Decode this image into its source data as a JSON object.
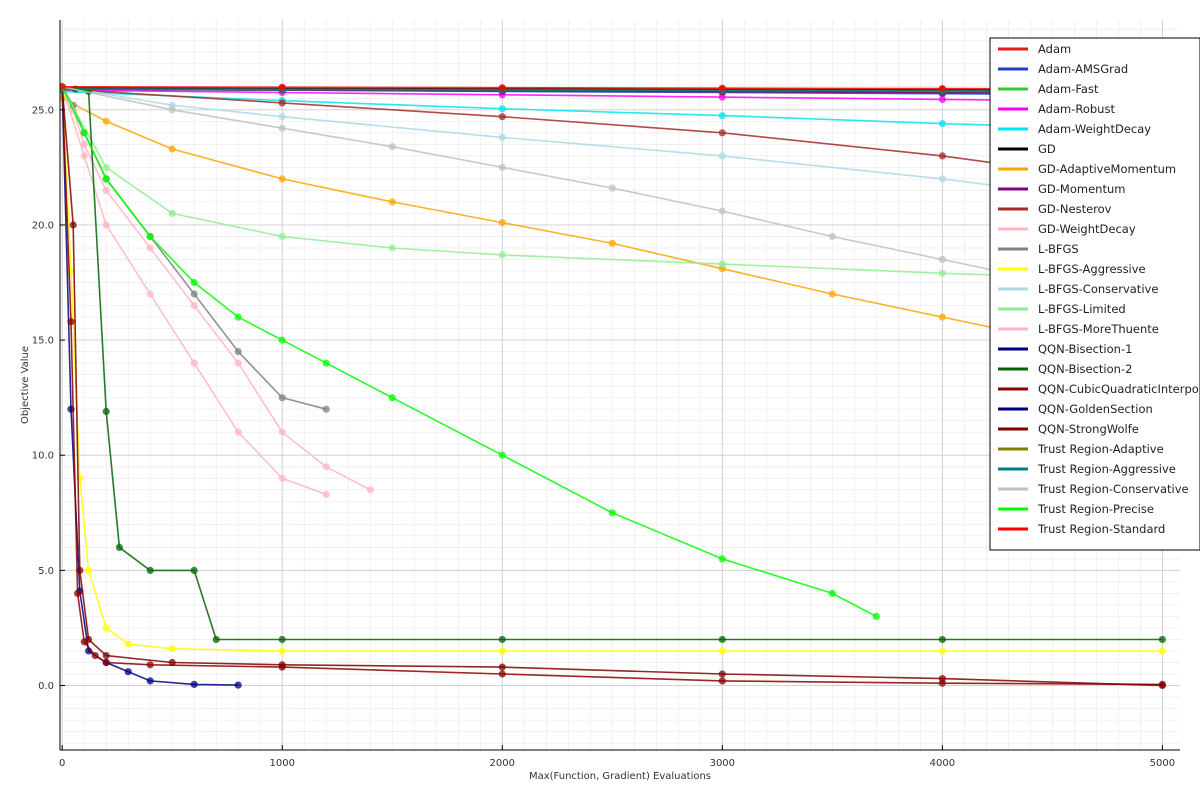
{
  "chart_data": {
    "type": "line",
    "title": "",
    "xlabel": "Max(Function, Gradient) Evaluations",
    "ylabel": "Objective Value",
    "xlim": [
      -10,
      5080
    ],
    "ylim": [
      -2.8,
      28.9
    ],
    "x_ticks": [
      0,
      1000,
      2000,
      3000,
      4000,
      5000
    ],
    "x_tick_labels": [
      "0",
      "1000",
      "2000",
      "3000",
      "4000",
      "5000"
    ],
    "y_ticks": [
      0,
      5,
      10,
      15,
      20,
      25
    ],
    "y_tick_labels": [
      "0.0",
      "5.0",
      "10.0",
      "15.0",
      "20.0",
      "25.0"
    ],
    "grid": true,
    "legend_position": "top-right",
    "series": [
      {
        "name": "Adam",
        "color": "#e41a1c",
        "x": [
          0,
          1000,
          2000,
          3000,
          4000,
          5000
        ],
        "y": [
          25.9,
          25.86,
          25.82,
          25.78,
          25.74,
          25.7
        ]
      },
      {
        "name": "Adam-AMSGrad",
        "color": "#1f3fd1",
        "x": [
          0,
          1000,
          2000,
          3000,
          4000,
          5000
        ],
        "y": [
          25.9,
          25.85,
          25.8,
          25.75,
          25.7,
          25.65
        ]
      },
      {
        "name": "Adam-Fast",
        "color": "#33cc33",
        "x": [
          0,
          1000,
          2000,
          3000,
          4000,
          5000
        ],
        "y": [
          25.9,
          25.86,
          25.82,
          25.78,
          25.74,
          25.7
        ]
      },
      {
        "name": "Adam-Robust",
        "color": "#ff00ff",
        "x": [
          0,
          1000,
          2000,
          3000,
          4000,
          5000
        ],
        "y": [
          25.85,
          25.75,
          25.65,
          25.55,
          25.45,
          25.35
        ]
      },
      {
        "name": "Adam-WeightDecay",
        "color": "#00e5ee",
        "x": [
          0,
          1000,
          2000,
          3000,
          4000,
          5000
        ],
        "y": [
          25.8,
          25.4,
          25.05,
          24.75,
          24.4,
          24.1
        ]
      },
      {
        "name": "GD",
        "color": "#000000",
        "x": [
          0,
          1000,
          2000,
          3000,
          4000,
          5000
        ],
        "y": [
          25.95,
          25.93,
          25.91,
          25.89,
          25.87,
          25.85
        ]
      },
      {
        "name": "GD-AdaptiveMomentum",
        "color": "#ffa500",
        "x": [
          0,
          200,
          500,
          1000,
          1500,
          2000,
          2500,
          3000,
          3500,
          4000,
          4500,
          5000
        ],
        "y": [
          25.5,
          24.5,
          23.3,
          22.0,
          21.0,
          20.1,
          19.2,
          18.1,
          17.0,
          16.0,
          15.0,
          14.0
        ]
      },
      {
        "name": "GD-Momentum",
        "color": "#800080",
        "x": [
          0,
          1000,
          2000,
          3000,
          4000,
          5000
        ],
        "y": [
          25.9,
          25.86,
          25.82,
          25.78,
          25.74,
          25.7
        ]
      },
      {
        "name": "GD-Nesterov",
        "color": "#a52a2a",
        "x": [
          0,
          1000,
          2000,
          3000,
          4000,
          5000
        ],
        "y": [
          25.9,
          25.3,
          24.7,
          24.0,
          23.0,
          21.7
        ]
      },
      {
        "name": "GD-WeightDecay",
        "color": "#ffb6c1",
        "x": [
          0,
          50,
          100,
          200,
          400,
          600,
          800,
          1000,
          1200,
          1400
        ],
        "y": [
          26.0,
          25.0,
          23.5,
          21.5,
          19.0,
          16.5,
          14.0,
          11.0,
          9.5,
          8.5
        ]
      },
      {
        "name": "L-BFGS",
        "color": "#808080",
        "x": [
          0,
          50,
          100,
          200,
          400,
          600,
          800,
          1000,
          1200
        ],
        "y": [
          26.0,
          25.2,
          24.0,
          22.0,
          19.5,
          17.0,
          14.5,
          12.5,
          12.0
        ]
      },
      {
        "name": "L-BFGS-Aggressive",
        "color": "#ffff00",
        "x": [
          0,
          40,
          80,
          120,
          200,
          300,
          500,
          1000,
          2000,
          3000,
          4000,
          5000
        ],
        "y": [
          26.0,
          18.0,
          9.0,
          5.0,
          2.5,
          1.8,
          1.6,
          1.5,
          1.5,
          1.5,
          1.5,
          1.5
        ]
      },
      {
        "name": "L-BFGS-Conservative",
        "color": "#add8e6",
        "x": [
          0,
          500,
          1000,
          2000,
          3000,
          4000,
          5000
        ],
        "y": [
          26.0,
          25.2,
          24.7,
          23.8,
          23.0,
          22.0,
          20.8
        ]
      },
      {
        "name": "L-BFGS-Limited",
        "color": "#90ee90",
        "x": [
          0,
          200,
          500,
          1000,
          1500,
          2000,
          3000,
          4000,
          5000
        ],
        "y": [
          26.0,
          22.5,
          20.5,
          19.5,
          19.0,
          18.7,
          18.3,
          17.9,
          17.6
        ]
      },
      {
        "name": "L-BFGS-MoreThuente",
        "color": "#ffb6c1",
        "x": [
          0,
          100,
          200,
          400,
          600,
          800,
          1000,
          1200
        ],
        "y": [
          26.0,
          23.0,
          20.0,
          17.0,
          14.0,
          11.0,
          9.0,
          8.3
        ]
      },
      {
        "name": "QQN-Bisection-1",
        "color": "#000080",
        "x": [
          0,
          40,
          80,
          120,
          200,
          300,
          400,
          600,
          800
        ],
        "y": [
          26.0,
          12.0,
          4.1,
          1.5,
          1.0,
          0.6,
          0.2,
          0.05,
          0.02
        ]
      },
      {
        "name": "QQN-Bisection-2",
        "color": "#006400",
        "x": [
          0,
          60,
          120,
          200,
          260,
          400,
          600,
          700,
          1000,
          2000,
          3000,
          4000,
          5000
        ],
        "y": [
          26.0,
          25.9,
          25.8,
          11.9,
          6.0,
          5.0,
          5.0,
          2.0,
          2.0,
          2.0,
          2.0,
          2.0,
          2.0
        ]
      },
      {
        "name": "QQN-CubicQuadraticInterpolation",
        "color": "#8b0000",
        "x": [
          0,
          40,
          70,
          100,
          150,
          200,
          400,
          1000,
          2000,
          3000,
          4000,
          5000
        ],
        "y": [
          26.0,
          15.8,
          4.0,
          1.9,
          1.3,
          1.0,
          0.9,
          0.8,
          0.5,
          0.2,
          0.1,
          0.05
        ]
      },
      {
        "name": "QQN-GoldenSection",
        "color": "#000080",
        "x": [
          0,
          1000,
          2000,
          3000,
          4000,
          5000
        ],
        "y": [
          25.9,
          25.88,
          25.86,
          25.84,
          25.82,
          25.8
        ]
      },
      {
        "name": "QQN-StrongWolfe",
        "color": "#800000",
        "x": [
          0,
          50,
          80,
          120,
          200,
          500,
          1000,
          2000,
          3000,
          4000,
          5000
        ],
        "y": [
          26.0,
          20.0,
          5.0,
          2.0,
          1.3,
          1.0,
          0.9,
          0.8,
          0.5,
          0.3,
          0.0
        ]
      },
      {
        "name": "Trust Region-Adaptive",
        "color": "#808000",
        "x": [
          0,
          1000,
          2000,
          3000,
          4000,
          5000
        ],
        "y": [
          25.9,
          25.88,
          25.86,
          25.84,
          25.82,
          25.8
        ]
      },
      {
        "name": "Trust Region-Aggressive",
        "color": "#008080",
        "x": [
          0,
          1000,
          2000,
          3000,
          4000,
          5000
        ],
        "y": [
          25.9,
          25.88,
          25.86,
          25.84,
          25.82,
          25.8
        ]
      },
      {
        "name": "Trust Region-Conservative",
        "color": "#c0c0c0",
        "x": [
          0,
          500,
          1000,
          1500,
          2000,
          2500,
          3000,
          3500,
          4000,
          5000
        ],
        "y": [
          26.0,
          25.0,
          24.2,
          23.4,
          22.5,
          21.6,
          20.6,
          19.5,
          18.5,
          16.5
        ]
      },
      {
        "name": "Trust Region-Precise",
        "color": "#00ff00",
        "x": [
          0,
          100,
          200,
          400,
          600,
          800,
          1000,
          1200,
          1500,
          2000,
          2500,
          3000,
          3500,
          3700
        ],
        "y": [
          26.0,
          24.0,
          22.0,
          19.5,
          17.5,
          16.0,
          15.0,
          14.0,
          12.5,
          10.0,
          7.5,
          5.5,
          4.0,
          3.0
        ]
      },
      {
        "name": "Trust Region-Standard",
        "color": "#ff0000",
        "x": [
          0,
          1000,
          2000,
          3000,
          4000,
          5000
        ],
        "y": [
          26.0,
          25.98,
          25.96,
          25.94,
          25.92,
          25.9
        ]
      }
    ],
    "legend_labels": [
      "Adam",
      "Adam-AMSGrad",
      "Adam-Fast",
      "Adam-Robust",
      "Adam-WeightDecay",
      "GD",
      "GD-AdaptiveMomentum",
      "GD-Momentum",
      "GD-Nesterov",
      "GD-WeightDecay",
      "L-BFGS",
      "L-BFGS-Aggressive",
      "L-BFGS-Conservative",
      "L-BFGS-Limited",
      "L-BFGS-MoreThuente",
      "QQN-Bisection-1",
      "QQN-Bisection-2",
      "QQN-CubicQuadraticInterpo",
      "QQN-GoldenSection",
      "QQN-StrongWolfe",
      "Trust Region-Adaptive",
      "Trust Region-Aggressive",
      "Trust Region-Conservative",
      "Trust Region-Precise",
      "Trust Region-Standard"
    ]
  }
}
